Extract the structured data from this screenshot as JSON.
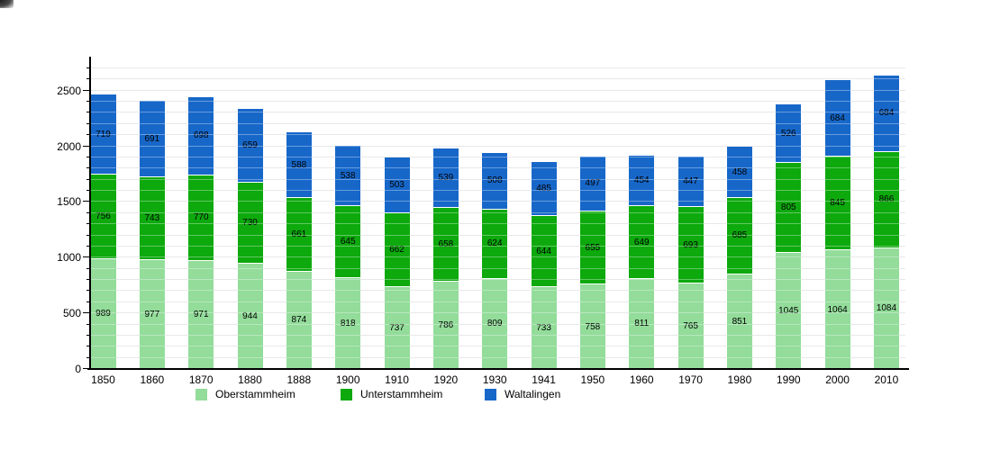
{
  "chart_data": {
    "type": "bar",
    "stacked": true,
    "title": "",
    "xlabel": "",
    "ylabel": "",
    "categories": [
      "1850",
      "1860",
      "1870",
      "1880",
      "1888",
      "1900",
      "1910",
      "1920",
      "1930",
      "1941",
      "1950",
      "1960",
      "1970",
      "1980",
      "1990",
      "2000",
      "2010"
    ],
    "series": [
      {
        "name": "Oberstammheim",
        "color": "#93DC9A",
        "values": [
          989,
          977,
          971,
          944,
          874,
          818,
          737,
          786,
          809,
          733,
          758,
          811,
          765,
          851,
          1045,
          1064,
          1084
        ]
      },
      {
        "name": "Unterstammheim",
        "color": "#0DA90D",
        "values": [
          756,
          743,
          770,
          730,
          661,
          645,
          662,
          658,
          624,
          644,
          655,
          649,
          693,
          685,
          805,
          845,
          866
        ]
      },
      {
        "name": "Waltalingen",
        "color": "#1767C9",
        "values": [
          719,
          691,
          698,
          659,
          588,
          538,
          503,
          539,
          508,
          485,
          497,
          454,
          447,
          458,
          526,
          684,
          684
        ]
      }
    ],
    "yticks": [
      0,
      500,
      1000,
      1500,
      2000,
      2500
    ],
    "ylim": [
      0,
      2805
    ],
    "grid": true,
    "grid_step": 100,
    "legend_position": "bottom",
    "colors": {
      "axis": "#000000",
      "gridline": "#dcdcdc",
      "value_label": "#000000",
      "background": "#ffffff"
    }
  }
}
